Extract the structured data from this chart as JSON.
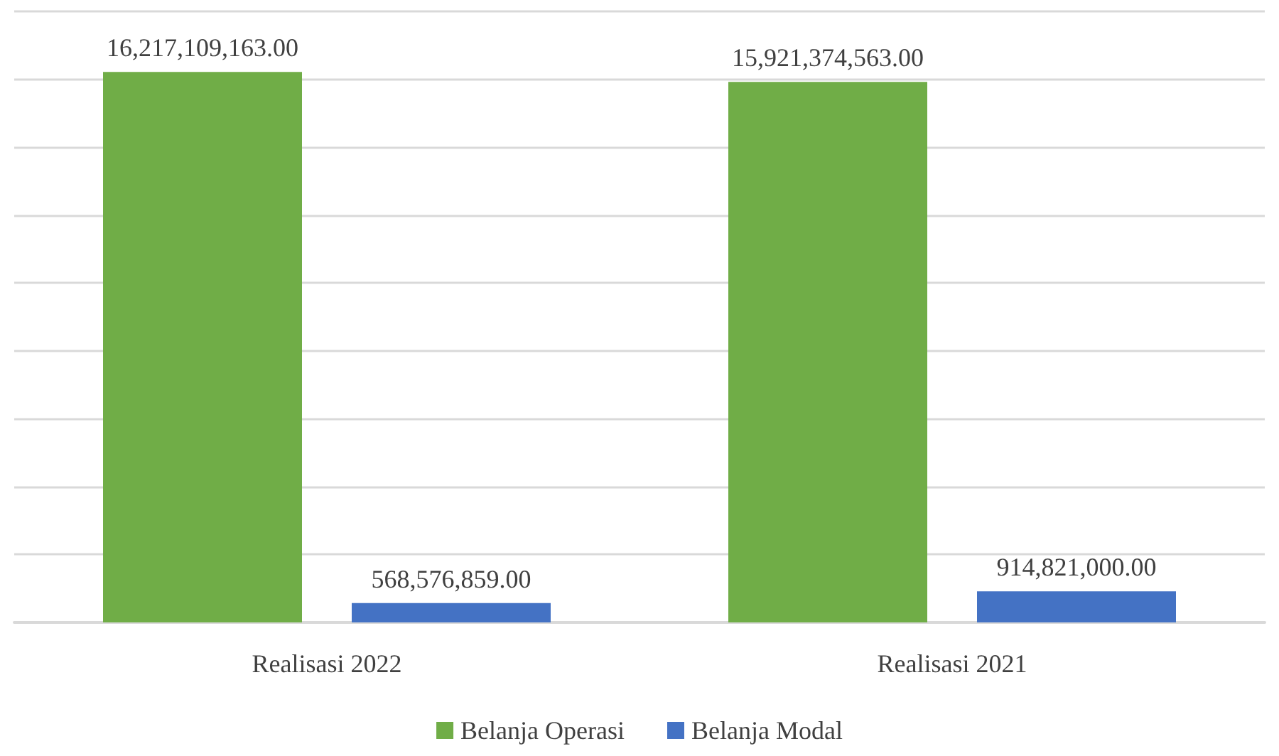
{
  "chart_data": {
    "type": "bar",
    "categories": [
      "Realisasi 2022",
      "Realisasi 2021"
    ],
    "series": [
      {
        "name": "Belanja Operasi",
        "color": "#70ad47",
        "values": [
          16217109163,
          15921374563
        ],
        "value_labels": [
          "16,217,109,163.00",
          "15,921,374,563.00"
        ]
      },
      {
        "name": "Belanja Modal",
        "color": "#4472c4",
        "values": [
          568576859,
          914821000
        ],
        "value_labels": [
          "568,576,859.00",
          "914,821,000.00"
        ]
      }
    ],
    "grid": "y",
    "legend": "bottom",
    "tick_labels": "x"
  }
}
